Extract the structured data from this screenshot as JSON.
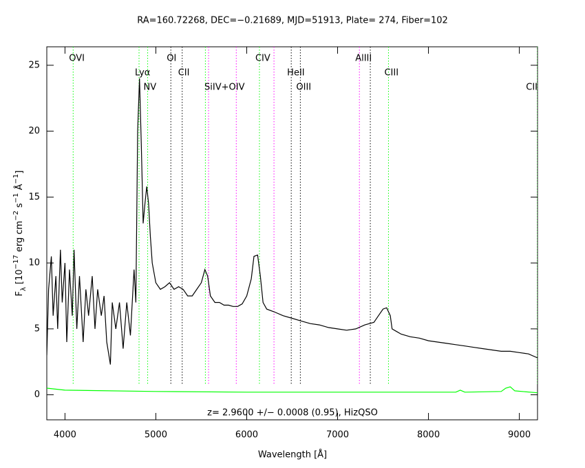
{
  "chart_data": {
    "type": "line",
    "title": "RA=160.72268, DEC=−0.21689, MJD=51913, Plate= 274, Fiber=102",
    "annotation": "z= 2.9600 +/− 0.0008 (0.95), HizQSO",
    "xlabel": "Wavelength [Å]",
    "ylabel": [
      {
        "text": "F"
      },
      {
        "text": "λ",
        "shift": "sub"
      },
      {
        "text": " [10"
      },
      {
        "text": "−17",
        "shift": "super"
      },
      {
        "text": " erg cm"
      },
      {
        "text": "−2",
        "shift": "super"
      },
      {
        "text": " s"
      },
      {
        "text": "−1",
        "shift": "super"
      },
      {
        "text": " Å"
      },
      {
        "text": "−1",
        "shift": "super"
      },
      {
        "text": "]"
      }
    ],
    "xlim": [
      3800,
      9200
    ],
    "ylim": [
      -1.9,
      26.4
    ],
    "xticks": [
      4000,
      5000,
      6000,
      7000,
      8000,
      9000
    ],
    "yticks": [
      0,
      5,
      10,
      15,
      20,
      25
    ],
    "series": [
      {
        "color": "#000000",
        "x": [
          3800,
          3820,
          3850,
          3870,
          3900,
          3920,
          3950,
          3970,
          4000,
          4020,
          4050,
          4080,
          4100,
          4130,
          4160,
          4200,
          4230,
          4260,
          4300,
          4330,
          4360,
          4400,
          4430,
          4460,
          4500,
          4520,
          4560,
          4600,
          4640,
          4680,
          4720,
          4760,
          4780,
          4800,
          4820,
          4840,
          4860,
          4880,
          4900,
          4920,
          4940,
          4960,
          5000,
          5050,
          5100,
          5150,
          5200,
          5250,
          5300,
          5350,
          5400,
          5450,
          5500,
          5540,
          5570,
          5600,
          5650,
          5700,
          5750,
          5800,
          5850,
          5900,
          5950,
          6000,
          6050,
          6080,
          6120,
          6150,
          6180,
          6220,
          6300,
          6400,
          6500,
          6600,
          6700,
          6800,
          6900,
          7000,
          7100,
          7200,
          7300,
          7400,
          7450,
          7500,
          7540,
          7580,
          7600,
          7650,
          7700,
          7800,
          7900,
          8000,
          8100,
          8200,
          8300,
          8400,
          8500,
          8600,
          8700,
          8800,
          8900,
          9000,
          9100,
          9200
        ],
        "values": [
          3.0,
          8,
          10.5,
          6,
          9,
          5,
          11,
          7,
          10,
          4,
          9.5,
          6,
          11,
          5,
          9,
          4,
          8,
          6,
          9,
          5,
          8,
          6,
          7.5,
          4,
          2.3,
          7,
          5,
          7,
          3.5,
          7,
          4.5,
          9.5,
          7,
          20,
          24,
          19,
          13,
          14.5,
          15.8,
          14.5,
          12,
          10,
          8.5,
          8,
          8.2,
          8.5,
          8,
          8.2,
          8,
          7.5,
          7.5,
          8,
          8.5,
          9.5,
          9,
          7.5,
          7,
          7,
          6.8,
          6.8,
          6.7,
          6.7,
          6.9,
          7.5,
          8.8,
          10.5,
          10.6,
          9,
          7,
          6.5,
          6.3,
          6,
          5.8,
          5.6,
          5.4,
          5.3,
          5.1,
          5.0,
          4.9,
          5.0,
          5.3,
          5.5,
          6.0,
          6.5,
          6.6,
          6.0,
          5.0,
          4.8,
          4.6,
          4.4,
          4.3,
          4.1,
          4.0,
          3.9,
          3.8,
          3.7,
          3.6,
          3.5,
          3.4,
          3.3,
          3.3,
          3.2,
          3.1,
          2.8
        ]
      },
      {
        "color": "#00ff00",
        "x": [
          3800,
          4000,
          5000,
          6000,
          7000,
          8000,
          8300,
          8350,
          8400,
          8800,
          8850,
          8900,
          8950,
          9200
        ],
        "values": [
          0.5,
          0.35,
          0.25,
          0.2,
          0.2,
          0.2,
          0.2,
          0.35,
          0.2,
          0.25,
          0.5,
          0.6,
          0.3,
          0.15
        ]
      }
    ],
    "markers": [
      {
        "label": "OVI",
        "wavelength": 4090,
        "color": "#00ff00",
        "row": 0
      },
      {
        "label": "Lyα",
        "wavelength": 4815,
        "color": "#00ff00",
        "row": 1
      },
      {
        "label": "NV",
        "wavelength": 4910,
        "color": "#00ff00",
        "row": 2
      },
      {
        "label": "OI",
        "wavelength": 5165,
        "color": "#000000",
        "row": 0
      },
      {
        "label": "CII",
        "wavelength": 5290,
        "color": "#000000",
        "row": 1
      },
      {
        "wavelength": 5545,
        "color": "#00ff00"
      },
      {
        "label": "SiIV+OIV",
        "wavelength": 5580,
        "color": "#ff00ff",
        "row": 2
      },
      {
        "wavelength": 5885,
        "color": "#ff00ff"
      },
      {
        "label": "CIV",
        "wavelength": 6140,
        "color": "#00ff00",
        "row": 0
      },
      {
        "wavelength": 6300,
        "color": "#ff00ff"
      },
      {
        "label": "HeII",
        "wavelength": 6490,
        "color": "#000000",
        "row": 1
      },
      {
        "label": "OIII",
        "wavelength": 6590,
        "color": "#000000",
        "row": 2
      },
      {
        "label": "AlIII",
        "wavelength": 7240,
        "color": "#ff00ff",
        "row": 0
      },
      {
        "wavelength": 7360,
        "color": "#000000"
      },
      {
        "label": "CIII",
        "wavelength": 7560,
        "color": "#00ff00",
        "row": 1
      },
      {
        "label": "CII",
        "wavelength": 9200,
        "color": "#00ff00",
        "row": 2
      }
    ]
  }
}
